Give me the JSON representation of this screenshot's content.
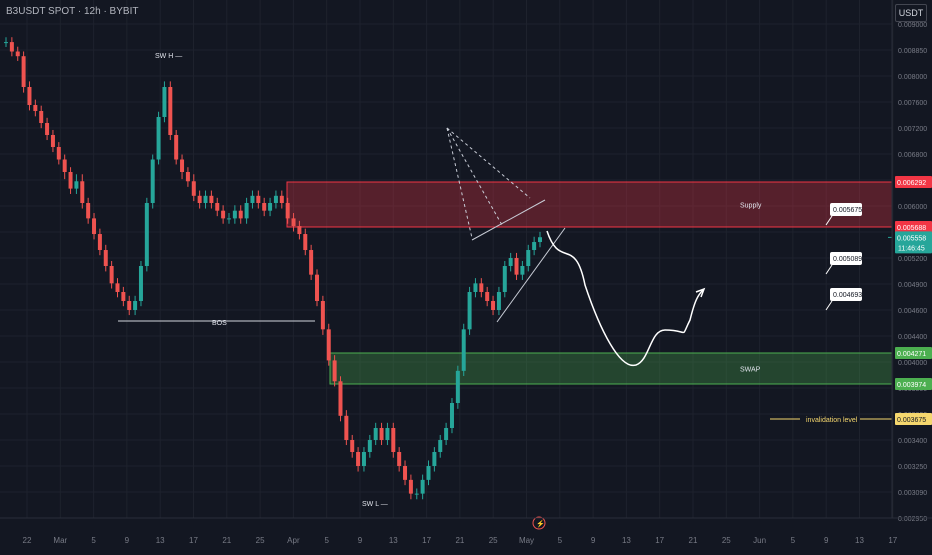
{
  "header": {
    "symbol": "B3USDT SPOT · 12h · BYBIT",
    "currency_button": "USDT"
  },
  "colors": {
    "background": "#131722",
    "grid": "#1e222d",
    "up": "#26a69a",
    "down": "#ef5350",
    "supply_fill": "rgba(242,54,69,0.30)",
    "swap_fill": "rgba(76,175,80,0.30)",
    "invalidation": "#f5d76e",
    "text": "#b2b5be"
  },
  "chart_data": {
    "type": "candlestick",
    "price_axis": {
      "ticks": [
        "0.009000",
        "0.008850",
        "0.008000",
        "0.007600",
        "0.007200",
        "0.006800",
        "0.006400",
        "0.006000",
        "0.005600",
        "0.005200",
        "0.004900",
        "0.004600",
        "0.004400",
        "0.004000",
        "0.003800",
        "0.003600",
        "0.003400",
        "0.003250",
        "0.003090",
        "0.002950"
      ],
      "markers": [
        {
          "label": "0.006292",
          "color": "#f23645"
        },
        {
          "label": "0.005688",
          "color": "#f23645"
        },
        {
          "label": "0.005558",
          "color": "#26a69a",
          "sub": "11:46:45"
        },
        {
          "label": "0.004271",
          "color": "#4caf50"
        },
        {
          "label": "0.003974",
          "color": "#4caf50"
        },
        {
          "label": "0.003675",
          "color": "#f5d76e"
        }
      ]
    },
    "time_axis": [
      "22",
      "Mar",
      "5",
      "9",
      "13",
      "17",
      "21",
      "25",
      "Apr",
      "5",
      "9",
      "13",
      "17",
      "21",
      "25",
      "May",
      "5",
      "9",
      "13",
      "17",
      "21",
      "25",
      "Jun",
      "5",
      "9",
      "13",
      "17"
    ],
    "zones": [
      {
        "name": "Supply",
        "label": "Supply",
        "top": 0.006292,
        "bottom": 0.005688
      },
      {
        "name": "SWAP",
        "label": "SWAP",
        "top": 0.004271,
        "bottom": 0.003974
      }
    ],
    "annotations": {
      "swing_high": "SW H",
      "swing_low": "SW L",
      "bos": "BOS",
      "invalidation": "invalidation level"
    },
    "target_labels": [
      "0.005675",
      "0.005089",
      "0.004693"
    ]
  }
}
